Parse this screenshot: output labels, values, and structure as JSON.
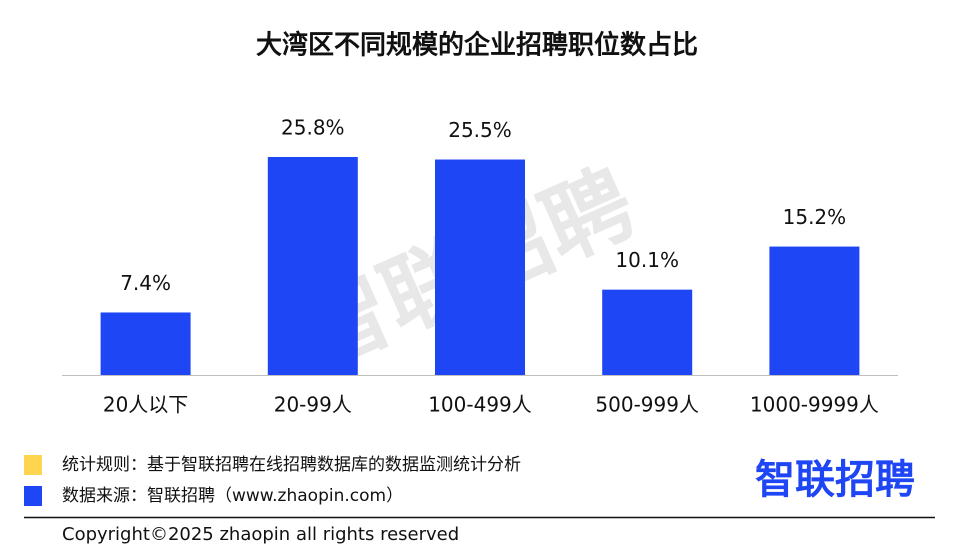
{
  "chart_data": {
    "type": "bar",
    "title": "大湾区不同规模的企业招聘职位数占比",
    "categories": [
      "20人以下",
      "20-99人",
      "100-499人",
      "500-999人",
      "1000-9999人"
    ],
    "values": [
      7.4,
      25.8,
      25.5,
      10.1,
      15.2
    ],
    "value_labels": [
      "7.4%",
      "25.8%",
      "25.5%",
      "10.1%",
      "15.2%"
    ],
    "color": "#1f46f5"
  },
  "watermark": "智联招聘",
  "footer": {
    "notes": [
      {
        "text": "统计规则：基于智联招聘在线招聘数据库的数据监测统计分析",
        "color": "#ffd54f"
      },
      {
        "text": "数据来源：智联招聘（www.zhaopin.com）",
        "color": "#1f46f5"
      }
    ],
    "logo": "智联招聘",
    "copyright": "Copyright©2025 zhaopin all rights reserved"
  }
}
